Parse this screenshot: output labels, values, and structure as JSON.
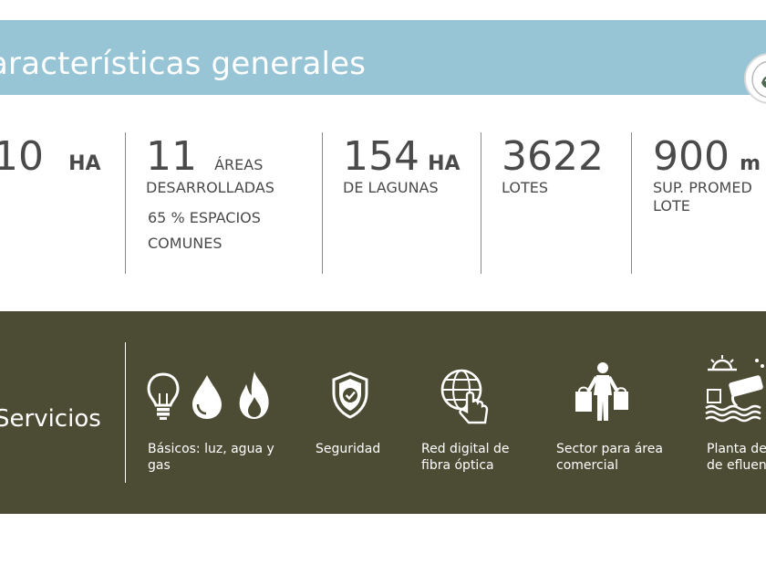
{
  "header": {
    "title": "aracterísticas generales"
  },
  "stats": [
    {
      "value": "10",
      "unit": "HA",
      "lines": []
    },
    {
      "value": "11",
      "unit": "ÁREAS",
      "lines": [
        "DESARROLLADAS",
        "65 % ESPACIOS",
        "COMUNES"
      ]
    },
    {
      "value": "154",
      "unit": "HA",
      "lines": [
        "DE LAGUNAS"
      ]
    },
    {
      "value": "3622",
      "unit": "",
      "lines": [
        "LOTES"
      ]
    },
    {
      "value": "900",
      "unit": "m",
      "lines": [
        "SUP. PROMED",
        "LOTE"
      ]
    }
  ],
  "services": {
    "title": "Servicios",
    "items": [
      {
        "label_line1": "Básicos: luz, agua y",
        "label_line2": "gas",
        "icons": [
          "lightbulb-icon",
          "water-drop-icon",
          "flame-icon"
        ]
      },
      {
        "label_line1": "Seguridad",
        "label_line2": "",
        "icons": [
          "shield-check-icon"
        ]
      },
      {
        "label_line1": "Red digital de",
        "label_line2": "fibra óptica",
        "icons": [
          "globe-hand-icon"
        ]
      },
      {
        "label_line1": "Sector para área",
        "label_line2": "comercial",
        "icons": [
          "shopper-icon"
        ]
      },
      {
        "label_line1": "Planta de",
        "label_line2": "de efluen",
        "icons": [
          "treatment-plant-icon"
        ]
      }
    ]
  },
  "colors": {
    "header_band": "#98c5d6",
    "services_band": "#4c4b33",
    "text": "#4a4a4a"
  }
}
